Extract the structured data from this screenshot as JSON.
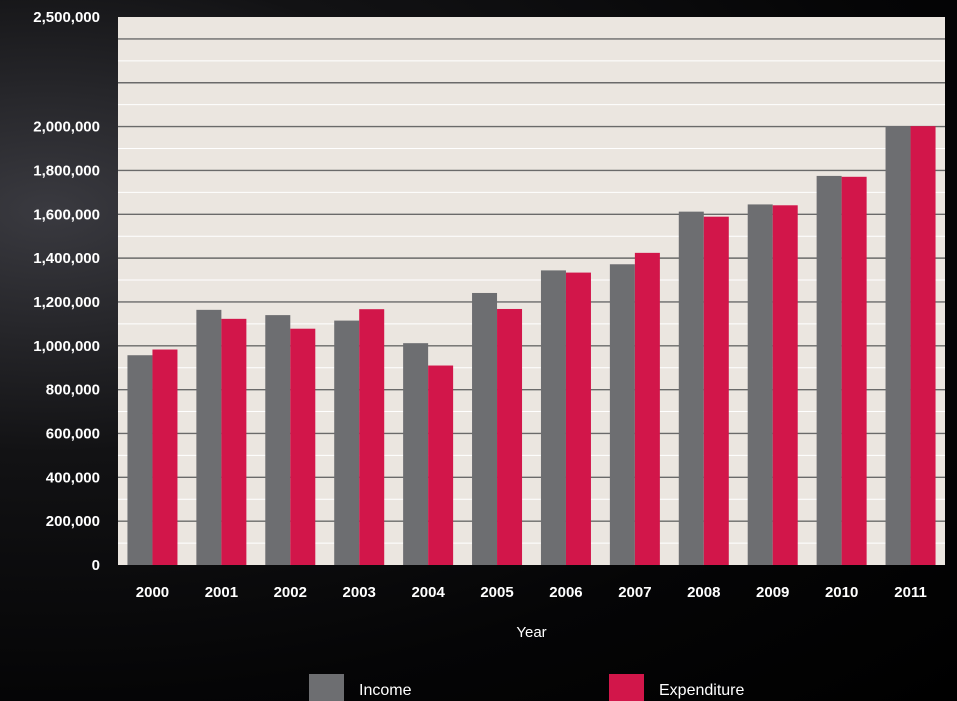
{
  "chart_data": {
    "type": "bar",
    "title": "",
    "xlabel": "Year",
    "ylabel": "",
    "categories": [
      "2000",
      "2001",
      "2002",
      "2003",
      "2004",
      "2005",
      "2006",
      "2007",
      "2008",
      "2009",
      "2010",
      "2011"
    ],
    "series": [
      {
        "name": "Income",
        "color": "#6d6e71",
        "values": [
          957000,
          1164000,
          1140000,
          1115000,
          1012000,
          1241000,
          1344000,
          1372000,
          1612000,
          1645000,
          1775000,
          2002000
        ]
      },
      {
        "name": "Expenditure",
        "color": "#d2164a",
        "values": [
          983000,
          1123000,
          1078000,
          1167000,
          910000,
          1168000,
          1334000,
          1424000,
          1589000,
          1641000,
          1771000,
          2002000
        ]
      }
    ],
    "ylim": [
      0,
      2500000
    ],
    "yticks": [
      0,
      200000,
      400000,
      600000,
      800000,
      1000000,
      1200000,
      1400000,
      1600000,
      1800000,
      2000000,
      2500000
    ],
    "ytick_labels": [
      "0",
      "200,000",
      "400,000",
      "600,000",
      "800,000",
      "1,000,000",
      "1,200,000",
      "1,400,000",
      "1,600,000",
      "1,800,000",
      "2,000,000",
      "2,500,000"
    ],
    "grid": true,
    "legend_position": "bottom",
    "plot_background": "#ebe6e0"
  }
}
